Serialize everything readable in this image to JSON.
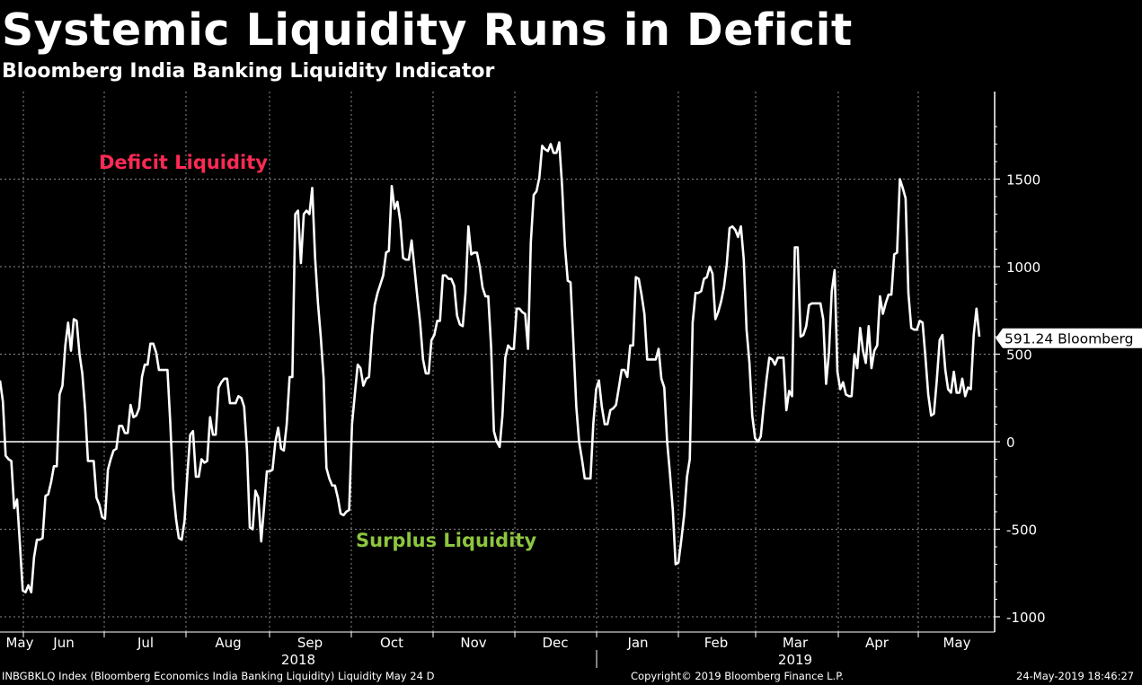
{
  "title": "Systemic Liquidity Runs in Deficit",
  "subtitle": "Bloomberg India Banking Liquidity Indicator",
  "footer": {
    "left": "INBGBKLQ Index (Bloomberg Economics India Banking Liquidity) Liquidity May 24  D",
    "center": "Copyright© 2019 Bloomberg Finance L.P.",
    "right": "24-May-2019 18:46:27"
  },
  "colors": {
    "background": "#000000",
    "line": "#ffffff",
    "deficit": "#ff2a55",
    "surplus": "#8dc63f",
    "grid": "#8a8a8a"
  },
  "chart_data": {
    "type": "line",
    "title": "Systemic Liquidity Runs in Deficit",
    "subtitle": "Bloomberg India Banking Liquidity Indicator",
    "xlabel": "",
    "ylabel": "",
    "ylim": [
      -1050,
      1980
    ],
    "yticks": [
      -1000,
      -500,
      0,
      500,
      1000,
      1500
    ],
    "ytick_labels": [
      "-1000",
      "-500",
      "0",
      "500",
      "1000",
      "1500"
    ],
    "grid": true,
    "x_month_labels": [
      "May",
      "Jun",
      "Jul",
      "Aug",
      "Sep",
      "Oct",
      "Nov",
      "Dec",
      "Jan",
      "Feb",
      "Mar",
      "Apr",
      "May"
    ],
    "x_year_labels": [
      "2018",
      "2019"
    ],
    "annotations": {
      "deficit": "Deficit Liquidity",
      "surplus": "Surplus Liquidity"
    },
    "last_value_label": "591.24 Bloomberg",
    "last_value": 591.24,
    "series": [
      {
        "name": "",
        "values": [
          350,
          230,
          -80,
          -100,
          -110,
          -380,
          -330,
          -580,
          -850,
          -860,
          -820,
          -860,
          -660,
          -560,
          -560,
          -550,
          -310,
          -300,
          -230,
          -140,
          -140,
          270,
          320,
          550,
          680,
          520,
          700,
          690,
          500,
          390,
          180,
          -110,
          -110,
          -110,
          -320,
          -360,
          -430,
          -440,
          -160,
          -100,
          -50,
          -40,
          90,
          90,
          50,
          50,
          210,
          140,
          150,
          190,
          370,
          440,
          440,
          560,
          560,
          510,
          410,
          410,
          410,
          410,
          100,
          -270,
          -440,
          -550,
          -560,
          -450,
          -190,
          40,
          60,
          -200,
          -200,
          -100,
          -120,
          -110,
          140,
          40,
          40,
          310,
          340,
          360,
          360,
          220,
          220,
          220,
          260,
          250,
          200,
          -50,
          -490,
          -500,
          -280,
          -320,
          -570,
          -380,
          -170,
          -170,
          -160,
          0,
          80,
          -40,
          -50,
          100,
          370,
          370,
          1300,
          1320,
          1020,
          1300,
          1320,
          1300,
          1450,
          1050,
          790,
          600,
          360,
          -150,
          -210,
          -250,
          -250,
          -320,
          -410,
          -420,
          -400,
          -390,
          100,
          270,
          440,
          420,
          320,
          360,
          370,
          610,
          780,
          850,
          900,
          950,
          1080,
          1090,
          1460,
          1330,
          1370,
          1260,
          1050,
          1040,
          1040,
          1150,
          990,
          830,
          680,
          470,
          390,
          390,
          580,
          610,
          690,
          690,
          950,
          950,
          930,
          930,
          890,
          720,
          670,
          660,
          850,
          1230,
          1070,
          1080,
          1080,
          1000,
          880,
          830,
          830,
          540,
          60,
          0,
          -30,
          150,
          480,
          550,
          530,
          530,
          760,
          760,
          740,
          730,
          530,
          1140,
          1410,
          1430,
          1510,
          1690,
          1670,
          1660,
          1700,
          1650,
          1650,
          1710,
          1460,
          1120,
          920,
          910,
          560,
          200,
          0,
          -100,
          -210,
          -210,
          -210,
          100,
          300,
          350,
          200,
          100,
          100,
          180,
          190,
          210,
          310,
          410,
          410,
          370,
          550,
          550,
          940,
          930,
          840,
          730,
          470,
          470,
          470,
          470,
          530,
          360,
          310,
          0,
          -180,
          -390,
          -700,
          -690,
          -560,
          -420,
          -200,
          -100,
          680,
          850,
          850,
          860,
          930,
          940,
          1000,
          960,
          700,
          740,
          800,
          880,
          1010,
          1220,
          1230,
          1210,
          1170,
          1230,
          1040,
          640,
          450,
          150,
          20,
          0,
          30,
          200,
          350,
          480,
          470,
          440,
          480,
          480,
          480,
          180,
          290,
          260,
          1110,
          1110,
          600,
          610,
          660,
          780,
          790,
          790,
          790,
          790,
          700,
          330,
          510,
          860,
          980,
          400,
          300,
          340,
          270,
          260,
          260,
          500,
          420,
          650,
          520,
          450,
          660,
          420,
          520,
          550,
          830,
          730,
          790,
          840,
          840,
          1070,
          1080,
          1500,
          1450,
          1390,
          850,
          650,
          640,
          640,
          690,
          680,
          480,
          270,
          150,
          160,
          350,
          580,
          610,
          410,
          300,
          280,
          400,
          280,
          280,
          360,
          260,
          310,
          300,
          610,
          760,
          600
        ]
      }
    ]
  }
}
